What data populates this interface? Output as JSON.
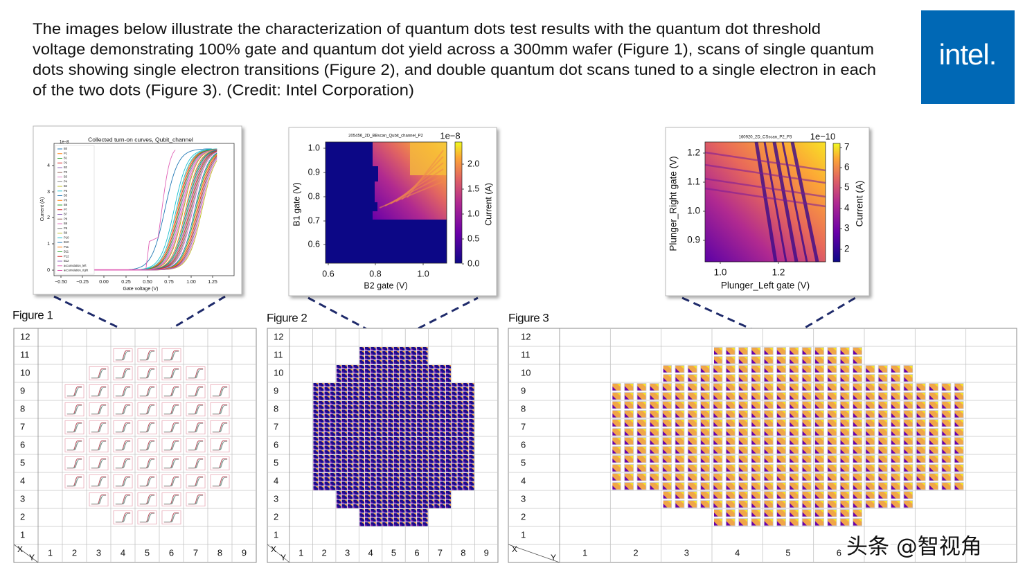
{
  "header": {
    "caption_lines": [
      "The images below illustrate the characterization of quantum dots test results with the quantum dot threshold",
      "voltage demonstrating 100% gate and quantum dot yield across a 300mm wafer (Figure 1), scans of single quantum",
      "dots showing single electron transitions (Figure 2), and double quantum dot scans tuned to a single electron in each",
      "of the two dots (Figure 3). (Credit: Intel Corporation)"
    ],
    "logo": "intel."
  },
  "insets": [
    {
      "title": "Collected turn-on curves, Qubit_channel",
      "multiplier": "1e−8",
      "y_label": "Current (A)",
      "x_label": "Gate voltage (V)",
      "y_ticks": [
        "0",
        "1",
        "2",
        "3",
        "4"
      ],
      "x_ticks": [
        "−0.50",
        "−0.25",
        "0.00",
        "0.25",
        "0.50",
        "0.75",
        "1.00",
        "1.25"
      ],
      "legend": [
        "B0",
        "P1",
        "B1",
        "P2",
        "B2",
        "P3",
        "B3",
        "P4",
        "B4",
        "P5",
        "B5",
        "P6",
        "B6",
        "P7",
        "B7",
        "P8",
        "B8",
        "P9",
        "B9",
        "P10",
        "B10",
        "P11",
        "B11",
        "P12",
        "B12",
        "accumulation_left",
        "accumulation_right"
      ]
    },
    {
      "title": "205456_2D_BBscan_Qubit_channel_P2",
      "multiplier": "1e−8",
      "y_label": "B1 gate (V)",
      "x_label": "B2 gate (V)",
      "y_ticks": [
        "1.0",
        "0.9",
        "0.8",
        "0.7",
        "0.6"
      ],
      "x_ticks": [
        "0.6",
        "0.8",
        "1.0"
      ],
      "colorbar_label": "Current (A)",
      "colorbar_ticks": [
        "0.0",
        "0.5",
        "1.0",
        "1.5",
        "2.0"
      ]
    },
    {
      "title": "160920_2D_CSscan_P2_P3",
      "multiplier": "1e−10",
      "y_label": "Plunger_Right gate (V)",
      "x_label": "Plunger_Left gate (V)",
      "y_ticks": [
        "1.2",
        "1.1",
        "1.0",
        "0.9"
      ],
      "x_ticks": [
        "1.0",
        "1.2"
      ],
      "colorbar_label": "Current (A)",
      "colorbar_ticks": [
        "2",
        "3",
        "4",
        "5",
        "6",
        "7"
      ]
    }
  ],
  "figures": [
    {
      "label": "Figure 1",
      "row_labels": [
        "12",
        "11",
        "10",
        "9",
        "8",
        "7",
        "6",
        "5",
        "4",
        "3",
        "2",
        "1"
      ],
      "col_labels": [
        "1",
        "2",
        "3",
        "4",
        "5",
        "6",
        "7",
        "8",
        "9"
      ],
      "corner_x": "X",
      "corner_y": "Y"
    },
    {
      "label": "Figure 2",
      "row_labels": [
        "12",
        "11",
        "10",
        "9",
        "8",
        "7",
        "6",
        "5",
        "4",
        "3",
        "2",
        "1"
      ],
      "col_labels": [
        "1",
        "2",
        "3",
        "4",
        "5",
        "6",
        "7",
        "8",
        "9"
      ],
      "corner_x": "X",
      "corner_y": "Y"
    },
    {
      "label": "Figure 3",
      "row_labels": [
        "12",
        "11",
        "10",
        "9",
        "8",
        "7",
        "6",
        "5",
        "4",
        "3",
        "2",
        "1"
      ],
      "col_labels": [
        "1",
        "2",
        "3",
        "4",
        "5",
        "6"
      ],
      "corner_x": "X",
      "corner_y": "Y"
    }
  ],
  "watermark": "头条 @智视角"
}
